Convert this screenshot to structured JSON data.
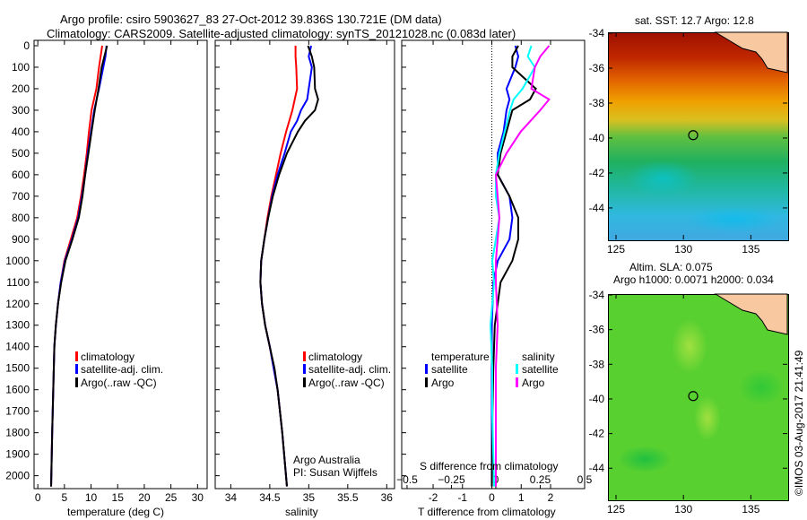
{
  "header": {
    "title1": "Argo profile: csiro 5903627_83 27-Oct-2012 39.836S 130.721E (DM data)",
    "title2": "Climatology: CARS2009. Satellite-adjusted climatology: synTS_20121028.nc (0.083d later)"
  },
  "credit": {
    "line1": "Argo Australia",
    "line2": "PI: Susan Wijffels"
  },
  "watermark": "©IMOS 03-Aug-2017 21:41:49",
  "colors": {
    "climatology": "#ff0000",
    "satellite": "#0000ff",
    "argo": "#000000",
    "sal_satellite": "#00ffff",
    "sal_argo": "#ff00ff"
  },
  "chart_data": [
    {
      "type": "line",
      "xlabel": "temperature (deg C)",
      "ylabel": "",
      "depth_ticks": [
        0,
        100,
        200,
        300,
        400,
        500,
        600,
        700,
        800,
        900,
        1000,
        1100,
        1200,
        1300,
        1400,
        1500,
        1600,
        1700,
        1800,
        1900,
        2000
      ],
      "xticks": [
        0,
        5,
        10,
        15,
        20,
        25,
        30
      ],
      "xlim": [
        -0.7,
        31.8
      ],
      "ylim": [
        2060,
        -25
      ],
      "legend": [
        "climatology",
        "satellite-adj. clim.",
        "Argo(..raw -QC)"
      ],
      "depth": [
        0,
        50,
        100,
        200,
        300,
        400,
        500,
        600,
        700,
        800,
        900,
        1000,
        1100,
        1200,
        1300,
        1400,
        1600,
        1800,
        2050
      ],
      "series": [
        {
          "name": "climatology",
          "values": [
            12.1,
            11.8,
            11.5,
            11.0,
            10.1,
            9.6,
            9.2,
            8.7,
            8.1,
            7.4,
            6.2,
            5.0,
            4.3,
            3.8,
            3.4,
            3.1,
            2.9,
            2.7,
            2.5
          ]
        },
        {
          "name": "satellite-adj. clim.",
          "values": [
            12.9,
            12.7,
            12.3,
            11.5,
            10.6,
            10.0,
            9.4,
            8.9,
            8.3,
            7.6,
            6.4,
            5.1,
            4.3,
            3.8,
            3.4,
            3.1,
            2.9,
            2.7,
            2.5
          ]
        },
        {
          "name": "Argo(..raw -QC)",
          "values": [
            13.0,
            12.5,
            12.0,
            11.4,
            10.7,
            10.1,
            9.5,
            8.9,
            8.4,
            7.7,
            6.5,
            5.2,
            4.4,
            3.8,
            3.4,
            3.1,
            2.9,
            2.7,
            2.5
          ]
        }
      ]
    },
    {
      "type": "line",
      "xlabel": "salinity",
      "xticks": [
        34,
        34.5,
        35,
        35.5,
        36
      ],
      "xlim": [
        33.8,
        36.1
      ],
      "ylim": [
        2060,
        -25
      ],
      "legend": [
        "climatology",
        "satellite-adj. clim.",
        "Argo(..raw -QC)"
      ],
      "depth": [
        0,
        50,
        100,
        200,
        250,
        300,
        350,
        400,
        500,
        600,
        700,
        800,
        900,
        1000,
        1100,
        1200,
        1300,
        1400,
        1500,
        1600,
        1800,
        2050
      ],
      "series": [
        {
          "name": "climatology",
          "values": [
            34.83,
            34.83,
            34.84,
            34.85,
            34.82,
            34.79,
            34.75,
            34.71,
            34.64,
            34.58,
            34.52,
            34.47,
            34.43,
            34.39,
            34.38,
            34.4,
            34.44,
            34.5,
            34.55,
            34.6,
            34.66,
            34.72
          ]
        },
        {
          "name": "satellite-adj. clim.",
          "values": [
            35.03,
            35.0,
            35.04,
            35.0,
            34.98,
            34.9,
            34.85,
            34.77,
            34.69,
            34.6,
            34.53,
            34.48,
            34.43,
            34.39,
            34.38,
            34.4,
            34.44,
            34.5,
            34.55,
            34.6,
            34.66,
            34.72
          ]
        },
        {
          "name": "Argo(..raw -QC)",
          "values": [
            34.99,
            35.04,
            35.07,
            35.08,
            35.12,
            35.08,
            34.95,
            34.86,
            34.72,
            34.62,
            34.54,
            34.48,
            34.43,
            34.39,
            34.38,
            34.4,
            34.44,
            34.5,
            34.56,
            34.6,
            34.66,
            34.72
          ]
        }
      ]
    },
    {
      "type": "line",
      "xlabel": "T difference from climatology",
      "x2label": "S difference from climatology",
      "xticks": [
        -2,
        -1,
        0,
        1,
        2
      ],
      "x2ticks": [
        -0.5,
        -0.25,
        0,
        0.25,
        0.5
      ],
      "xlim": [
        -3.07,
        3.16
      ],
      "x2lim": [
        -0.53,
        0.5
      ],
      "ylim": [
        2060,
        -25
      ],
      "legend_headers": [
        "temperature",
        "salinity"
      ],
      "legend": [
        "satellite",
        "Argo",
        "satellite",
        "Argo"
      ],
      "depth": [
        0,
        50,
        100,
        200,
        250,
        300,
        400,
        500,
        600,
        700,
        800,
        900,
        1000,
        1100,
        1300,
        1500,
        1700,
        2050
      ],
      "series": [
        {
          "name": "T satellite",
          "axis": "T",
          "values": [
            0.8,
            0.9,
            0.8,
            0.5,
            0.6,
            0.5,
            0.4,
            0.2,
            0.2,
            0.6,
            0.7,
            0.6,
            0.2,
            0.05,
            0.0,
            0.0,
            0.0,
            0.0
          ]
        },
        {
          "name": "T Argo",
          "axis": "T",
          "values": [
            0.9,
            0.7,
            0.7,
            1.5,
            1.3,
            0.7,
            0.5,
            0.3,
            0.2,
            0.6,
            0.9,
            0.9,
            0.7,
            0.3,
            0.1,
            0.05,
            0.02,
            0.0
          ]
        },
        {
          "name": "S satellite",
          "axis": "S",
          "values": [
            0.2,
            0.18,
            0.22,
            0.15,
            0.1,
            0.08,
            0.05,
            0.02,
            0.0,
            0.0,
            0.02,
            0.0,
            -0.02,
            -0.01,
            -0.03,
            -0.02,
            -0.02,
            -0.01
          ]
        },
        {
          "name": "S Argo",
          "axis": "S",
          "values": [
            0.3,
            0.25,
            0.22,
            0.2,
            0.3,
            0.25,
            0.14,
            0.06,
            0.0,
            0.01,
            0.02,
            0.01,
            0.0,
            0.0,
            0.01,
            0.0,
            0.0,
            0.0
          ]
        }
      ]
    },
    {
      "type": "heatmap",
      "title": "sat. SST: 12.7 Argo: 12.8",
      "lon_ticks": [
        125,
        130,
        135
      ],
      "lat_ticks": [
        -34,
        -36,
        -38,
        -40,
        -42,
        -44
      ],
      "lon": 130.721,
      "lat": -39.836
    },
    {
      "type": "heatmap",
      "title1": "Altim. SLA: 0.075",
      "title2": "Argo h1000: 0.0071 h2000: 0.034",
      "lon_ticks": [
        125,
        130,
        135
      ],
      "lat_ticks": [
        -34,
        -36,
        -38,
        -40,
        -42,
        -44
      ],
      "lon": 130.721,
      "lat": -39.836
    }
  ]
}
